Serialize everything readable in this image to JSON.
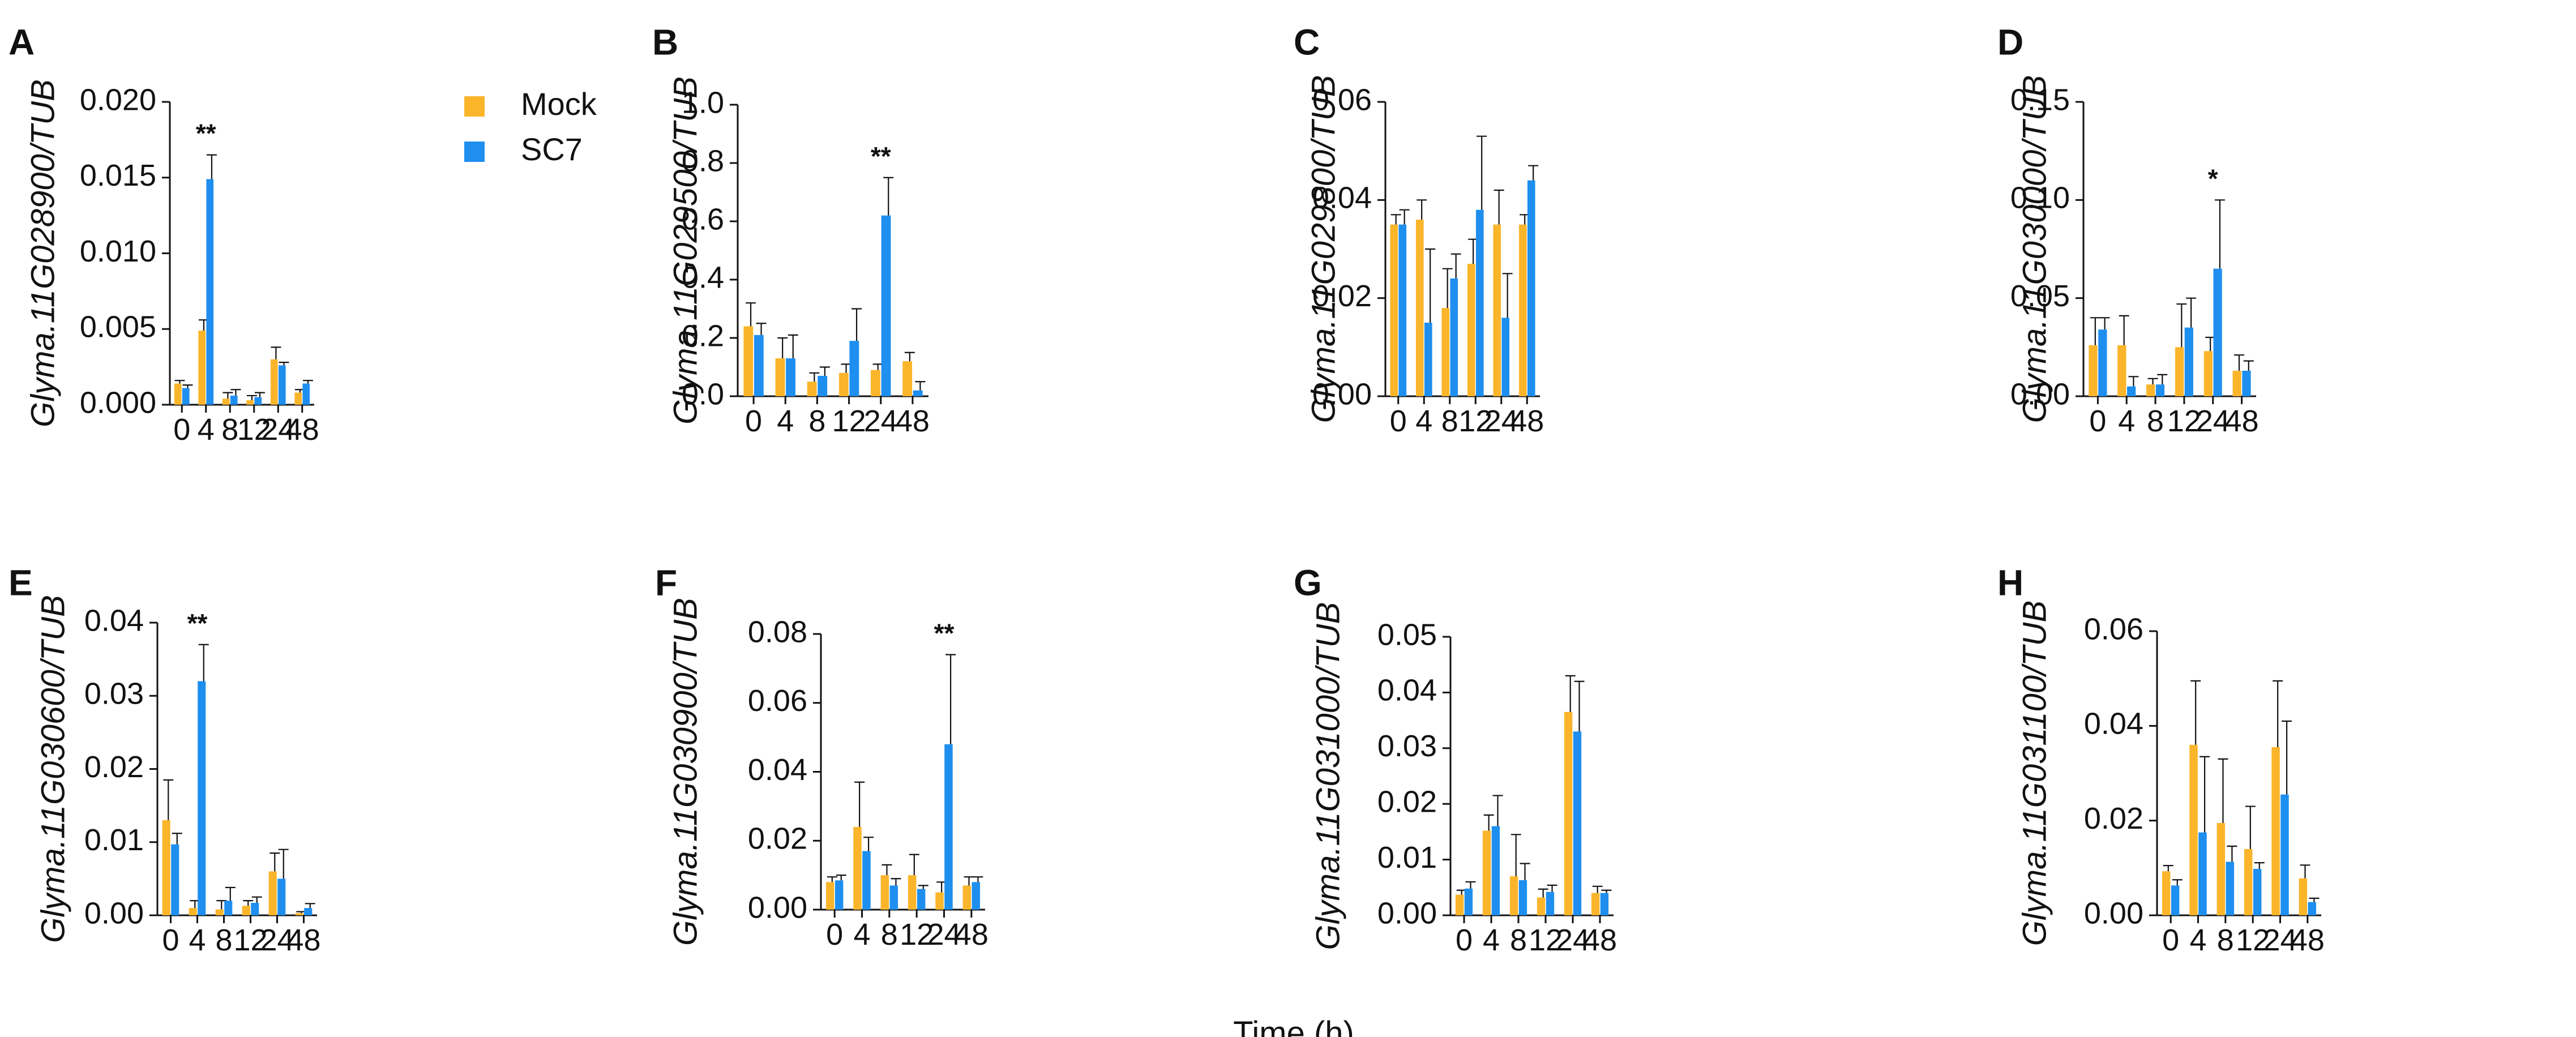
{
  "chart_data": [
    {
      "type": "bar",
      "panel": "A",
      "ylabel": "Glyma.11G028900/TUB",
      "xlabel": "Time (h)",
      "categories": [
        "0",
        "4",
        "8",
        "12",
        "24",
        "48"
      ],
      "ylim": [
        0,
        0.02
      ],
      "yticks": [
        "0.000",
        "0.005",
        "0.010",
        "0.015",
        "0.020"
      ],
      "series": [
        {
          "name": "Mock",
          "values": [
            0.0014,
            0.0049,
            0.0004,
            0.0003,
            0.003,
            0.0008
          ],
          "errors": [
            0.0002,
            0.0007,
            0.0004,
            0.0003,
            0.0008,
            0.0002
          ]
        },
        {
          "name": "SC7",
          "values": [
            0.0011,
            0.0149,
            0.0006,
            0.0005,
            0.0026,
            0.0014
          ],
          "errors": [
            0.0002,
            0.0016,
            0.0004,
            0.0003,
            0.0002,
            0.0002
          ]
        }
      ],
      "significance": [
        {
          "category": "4",
          "label": "**"
        }
      ],
      "legend": [
        "Mock",
        "SC7"
      ]
    },
    {
      "type": "bar",
      "panel": "B",
      "ylabel": "Glyma.11G029500/TUB",
      "xlabel": "Time (h)",
      "categories": [
        "0",
        "4",
        "8",
        "12",
        "24",
        "48"
      ],
      "ylim": [
        0,
        1.0
      ],
      "yticks": [
        "0.0",
        "0.2",
        "0.4",
        "0.6",
        "0.8",
        "1.0"
      ],
      "series": [
        {
          "name": "Mock",
          "values": [
            0.24,
            0.13,
            0.05,
            0.08,
            0.09,
            0.12
          ],
          "errors": [
            0.08,
            0.07,
            0.03,
            0.03,
            0.02,
            0.03
          ]
        },
        {
          "name": "SC7",
          "values": [
            0.21,
            0.13,
            0.07,
            0.19,
            0.62,
            0.02
          ],
          "errors": [
            0.04,
            0.08,
            0.03,
            0.11,
            0.13,
            0.03
          ]
        }
      ],
      "significance": [
        {
          "category": "24",
          "label": "**"
        }
      ]
    },
    {
      "type": "bar",
      "panel": "C",
      "ylabel": "Glyma.11G029800/TUB",
      "xlabel": "Time (h)",
      "categories": [
        "0",
        "4",
        "8",
        "12",
        "24",
        "48"
      ],
      "ylim": [
        0,
        0.06
      ],
      "yticks": [
        "0.00",
        "0.02",
        "0.04",
        "0.06"
      ],
      "series": [
        {
          "name": "Mock",
          "values": [
            0.035,
            0.036,
            0.018,
            0.027,
            0.035,
            0.035
          ],
          "errors": [
            0.002,
            0.004,
            0.008,
            0.005,
            0.007,
            0.002
          ]
        },
        {
          "name": "SC7",
          "values": [
            0.035,
            0.015,
            0.024,
            0.038,
            0.016,
            0.044
          ],
          "errors": [
            0.003,
            0.015,
            0.005,
            0.015,
            0.009,
            0.003
          ]
        }
      ],
      "significance": []
    },
    {
      "type": "bar",
      "panel": "D",
      "ylabel": "Glyma.11G030000/TUB",
      "xlabel": "Time (h)",
      "categories": [
        "0",
        "4",
        "8",
        "12",
        "24",
        "48"
      ],
      "ylim": [
        0,
        0.15
      ],
      "yticks": [
        "0.00",
        "0.05",
        "0.10",
        "0.15"
      ],
      "series": [
        {
          "name": "Mock",
          "values": [
            0.026,
            0.026,
            0.006,
            0.025,
            0.023,
            0.013
          ],
          "errors": [
            0.014,
            0.015,
            0.003,
            0.022,
            0.007,
            0.008
          ]
        },
        {
          "name": "SC7",
          "values": [
            0.034,
            0.005,
            0.006,
            0.035,
            0.065,
            0.013
          ],
          "errors": [
            0.006,
            0.005,
            0.005,
            0.015,
            0.035,
            0.005
          ]
        }
      ],
      "significance": [
        {
          "category": "24",
          "label": "*"
        }
      ]
    },
    {
      "type": "bar",
      "panel": "E",
      "ylabel": "Glyma.11G030600/TUB",
      "xlabel": "Time (h)",
      "categories": [
        "0",
        "4",
        "8",
        "12",
        "24",
        "48"
      ],
      "ylim": [
        0,
        0.04
      ],
      "yticks": [
        "0.00",
        "0.01",
        "0.02",
        "0.03",
        "0.04"
      ],
      "series": [
        {
          "name": "Mock",
          "values": [
            0.013,
            0.001,
            0.0008,
            0.0013,
            0.006,
            0.0003
          ],
          "errors": [
            0.0055,
            0.001,
            0.0012,
            0.0007,
            0.0025,
            0.0002
          ]
        },
        {
          "name": "SC7",
          "values": [
            0.0097,
            0.032,
            0.002,
            0.0017,
            0.005,
            0.001
          ],
          "errors": [
            0.0015,
            0.005,
            0.0018,
            0.0008,
            0.004,
            0.0006
          ]
        }
      ],
      "significance": [
        {
          "category": "4",
          "label": "**"
        }
      ]
    },
    {
      "type": "bar",
      "panel": "F",
      "ylabel": "Glyma.11G030900/TUB",
      "xlabel": "Time (h)",
      "categories": [
        "0",
        "4",
        "8",
        "12",
        "24",
        "48"
      ],
      "ylim": [
        0,
        0.08
      ],
      "yticks": [
        "0.00",
        "0.02",
        "0.04",
        "0.06",
        "0.08"
      ],
      "series": [
        {
          "name": "Mock",
          "values": [
            0.008,
            0.024,
            0.01,
            0.01,
            0.005,
            0.007
          ],
          "errors": [
            0.0015,
            0.013,
            0.003,
            0.006,
            0.003,
            0.0025
          ]
        },
        {
          "name": "SC7",
          "values": [
            0.0085,
            0.017,
            0.007,
            0.006,
            0.048,
            0.008
          ],
          "errors": [
            0.0015,
            0.004,
            0.002,
            0.001,
            0.026,
            0.0015
          ]
        }
      ],
      "significance": [
        {
          "category": "24",
          "label": "**"
        }
      ]
    },
    {
      "type": "bar",
      "panel": "G",
      "ylabel": "Glyma.11G031000/TUB",
      "xlabel": "Time (h)",
      "categories": [
        "0",
        "4",
        "8",
        "12",
        "24",
        "48"
      ],
      "ylim": [
        0,
        0.05
      ],
      "yticks": [
        "0.00",
        "0.01",
        "0.02",
        "0.03",
        "0.04",
        "0.05"
      ],
      "series": [
        {
          "name": "Mock",
          "values": [
            0.0037,
            0.0152,
            0.007,
            0.0032,
            0.0365,
            0.004
          ],
          "errors": [
            0.0008,
            0.0028,
            0.0075,
            0.0015,
            0.0065,
            0.0012
          ]
        },
        {
          "name": "SC7",
          "values": [
            0.0048,
            0.016,
            0.0063,
            0.0042,
            0.033,
            0.004
          ],
          "errors": [
            0.0012,
            0.0055,
            0.003,
            0.0012,
            0.009,
            0.0005
          ]
        }
      ],
      "significance": []
    },
    {
      "type": "bar",
      "panel": "H",
      "ylabel": "Glyma.11G031100/TUB",
      "xlabel": "Time (h)",
      "categories": [
        "0",
        "4",
        "8",
        "12",
        "24",
        "48"
      ],
      "ylim": [
        0,
        0.06
      ],
      "yticks": [
        "0.00",
        "0.02",
        "0.04",
        "0.06"
      ],
      "series": [
        {
          "name": "Mock",
          "values": [
            0.0093,
            0.036,
            0.0195,
            0.014,
            0.0355,
            0.0078
          ],
          "errors": [
            0.0012,
            0.0135,
            0.0135,
            0.009,
            0.014,
            0.0028
          ]
        },
        {
          "name": "SC7",
          "values": [
            0.0063,
            0.0175,
            0.0113,
            0.0098,
            0.0255,
            0.0028
          ],
          "errors": [
            0.0012,
            0.016,
            0.0033,
            0.0013,
            0.0155,
            0.0008
          ]
        }
      ],
      "significance": []
    }
  ],
  "shared_xlabel": "Time (h)",
  "colors": {
    "Mock": "#fbb52b",
    "SC7": "#1e8fef",
    "axis": "#111111",
    "error": "#111111"
  }
}
